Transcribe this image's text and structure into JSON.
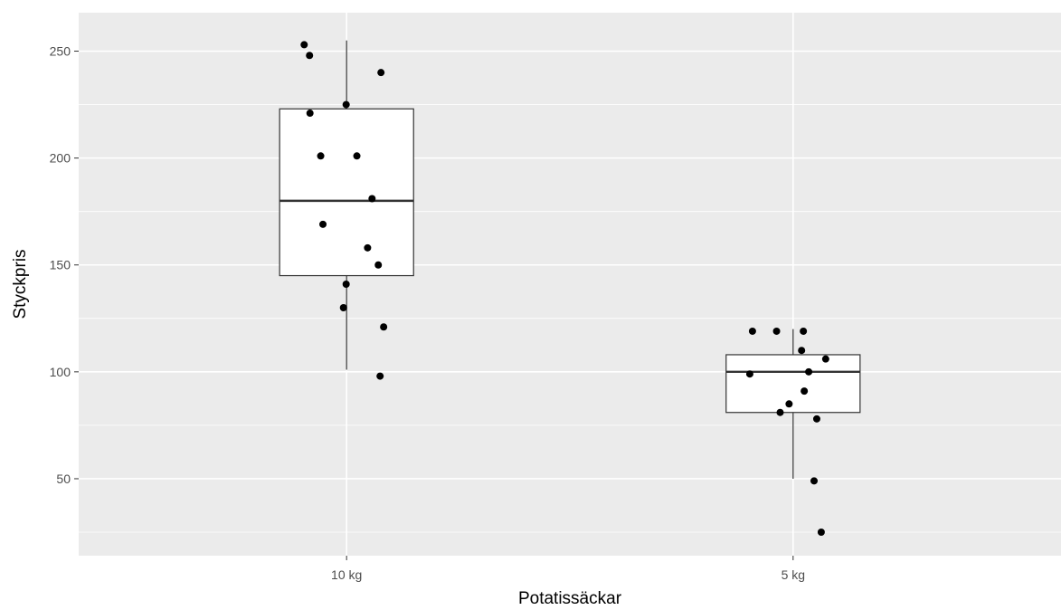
{
  "chart_data": {
    "type": "boxplot",
    "title": "",
    "xlabel": "Potatissäckar",
    "ylabel": "Styckpris",
    "categories": [
      "10 kg",
      "5 kg"
    ],
    "ylim": [
      14,
      268
    ],
    "yticks": [
      50,
      100,
      150,
      200,
      250
    ],
    "grid": true,
    "boxes": [
      {
        "category": "10 kg",
        "whisker_low": 101,
        "q1": 145,
        "median": 180,
        "q3": 223,
        "whisker_high": 255
      },
      {
        "category": "5 kg",
        "whisker_low": 50,
        "q1": 81,
        "median": 100,
        "q3": 108,
        "whisker_high": 120
      }
    ],
    "points": [
      {
        "category": "10 kg",
        "jitter": -0.095,
        "y": 253
      },
      {
        "category": "10 kg",
        "jitter": -0.083,
        "y": 248
      },
      {
        "category": "10 kg",
        "jitter": 0.077,
        "y": 240
      },
      {
        "category": "10 kg",
        "jitter": -0.001,
        "y": 225
      },
      {
        "category": "10 kg",
        "jitter": -0.082,
        "y": 221
      },
      {
        "category": "10 kg",
        "jitter": -0.058,
        "y": 201
      },
      {
        "category": "10 kg",
        "jitter": 0.023,
        "y": 201
      },
      {
        "category": "10 kg",
        "jitter": 0.057,
        "y": 181
      },
      {
        "category": "10 kg",
        "jitter": -0.053,
        "y": 169
      },
      {
        "category": "10 kg",
        "jitter": 0.047,
        "y": 158
      },
      {
        "category": "10 kg",
        "jitter": 0.071,
        "y": 150
      },
      {
        "category": "10 kg",
        "jitter": -0.001,
        "y": 141
      },
      {
        "category": "10 kg",
        "jitter": -0.007,
        "y": 130
      },
      {
        "category": "10 kg",
        "jitter": 0.083,
        "y": 121
      },
      {
        "category": "10 kg",
        "jitter": 0.075,
        "y": 98
      },
      {
        "category": "5 kg",
        "jitter": -0.091,
        "y": 119
      },
      {
        "category": "5 kg",
        "jitter": -0.037,
        "y": 119
      },
      {
        "category": "5 kg",
        "jitter": 0.023,
        "y": 119
      },
      {
        "category": "5 kg",
        "jitter": 0.019,
        "y": 110
      },
      {
        "category": "5 kg",
        "jitter": 0.073,
        "y": 106
      },
      {
        "category": "5 kg",
        "jitter": 0.035,
        "y": 100
      },
      {
        "category": "5 kg",
        "jitter": -0.097,
        "y": 99
      },
      {
        "category": "5 kg",
        "jitter": 0.025,
        "y": 91
      },
      {
        "category": "5 kg",
        "jitter": -0.009,
        "y": 85
      },
      {
        "category": "5 kg",
        "jitter": -0.029,
        "y": 81
      },
      {
        "category": "5 kg",
        "jitter": 0.053,
        "y": 78
      },
      {
        "category": "5 kg",
        "jitter": 0.047,
        "y": 49
      },
      {
        "category": "5 kg",
        "jitter": 0.063,
        "y": 25
      }
    ],
    "colors": {
      "panel": "#ebebeb",
      "grid_major": "#ffffff",
      "grid_minor": "#f5f5f5",
      "box_fill": "#ffffff",
      "box_stroke": "#333333",
      "point": "#000000",
      "tick_label": "#4d4d4d"
    }
  }
}
